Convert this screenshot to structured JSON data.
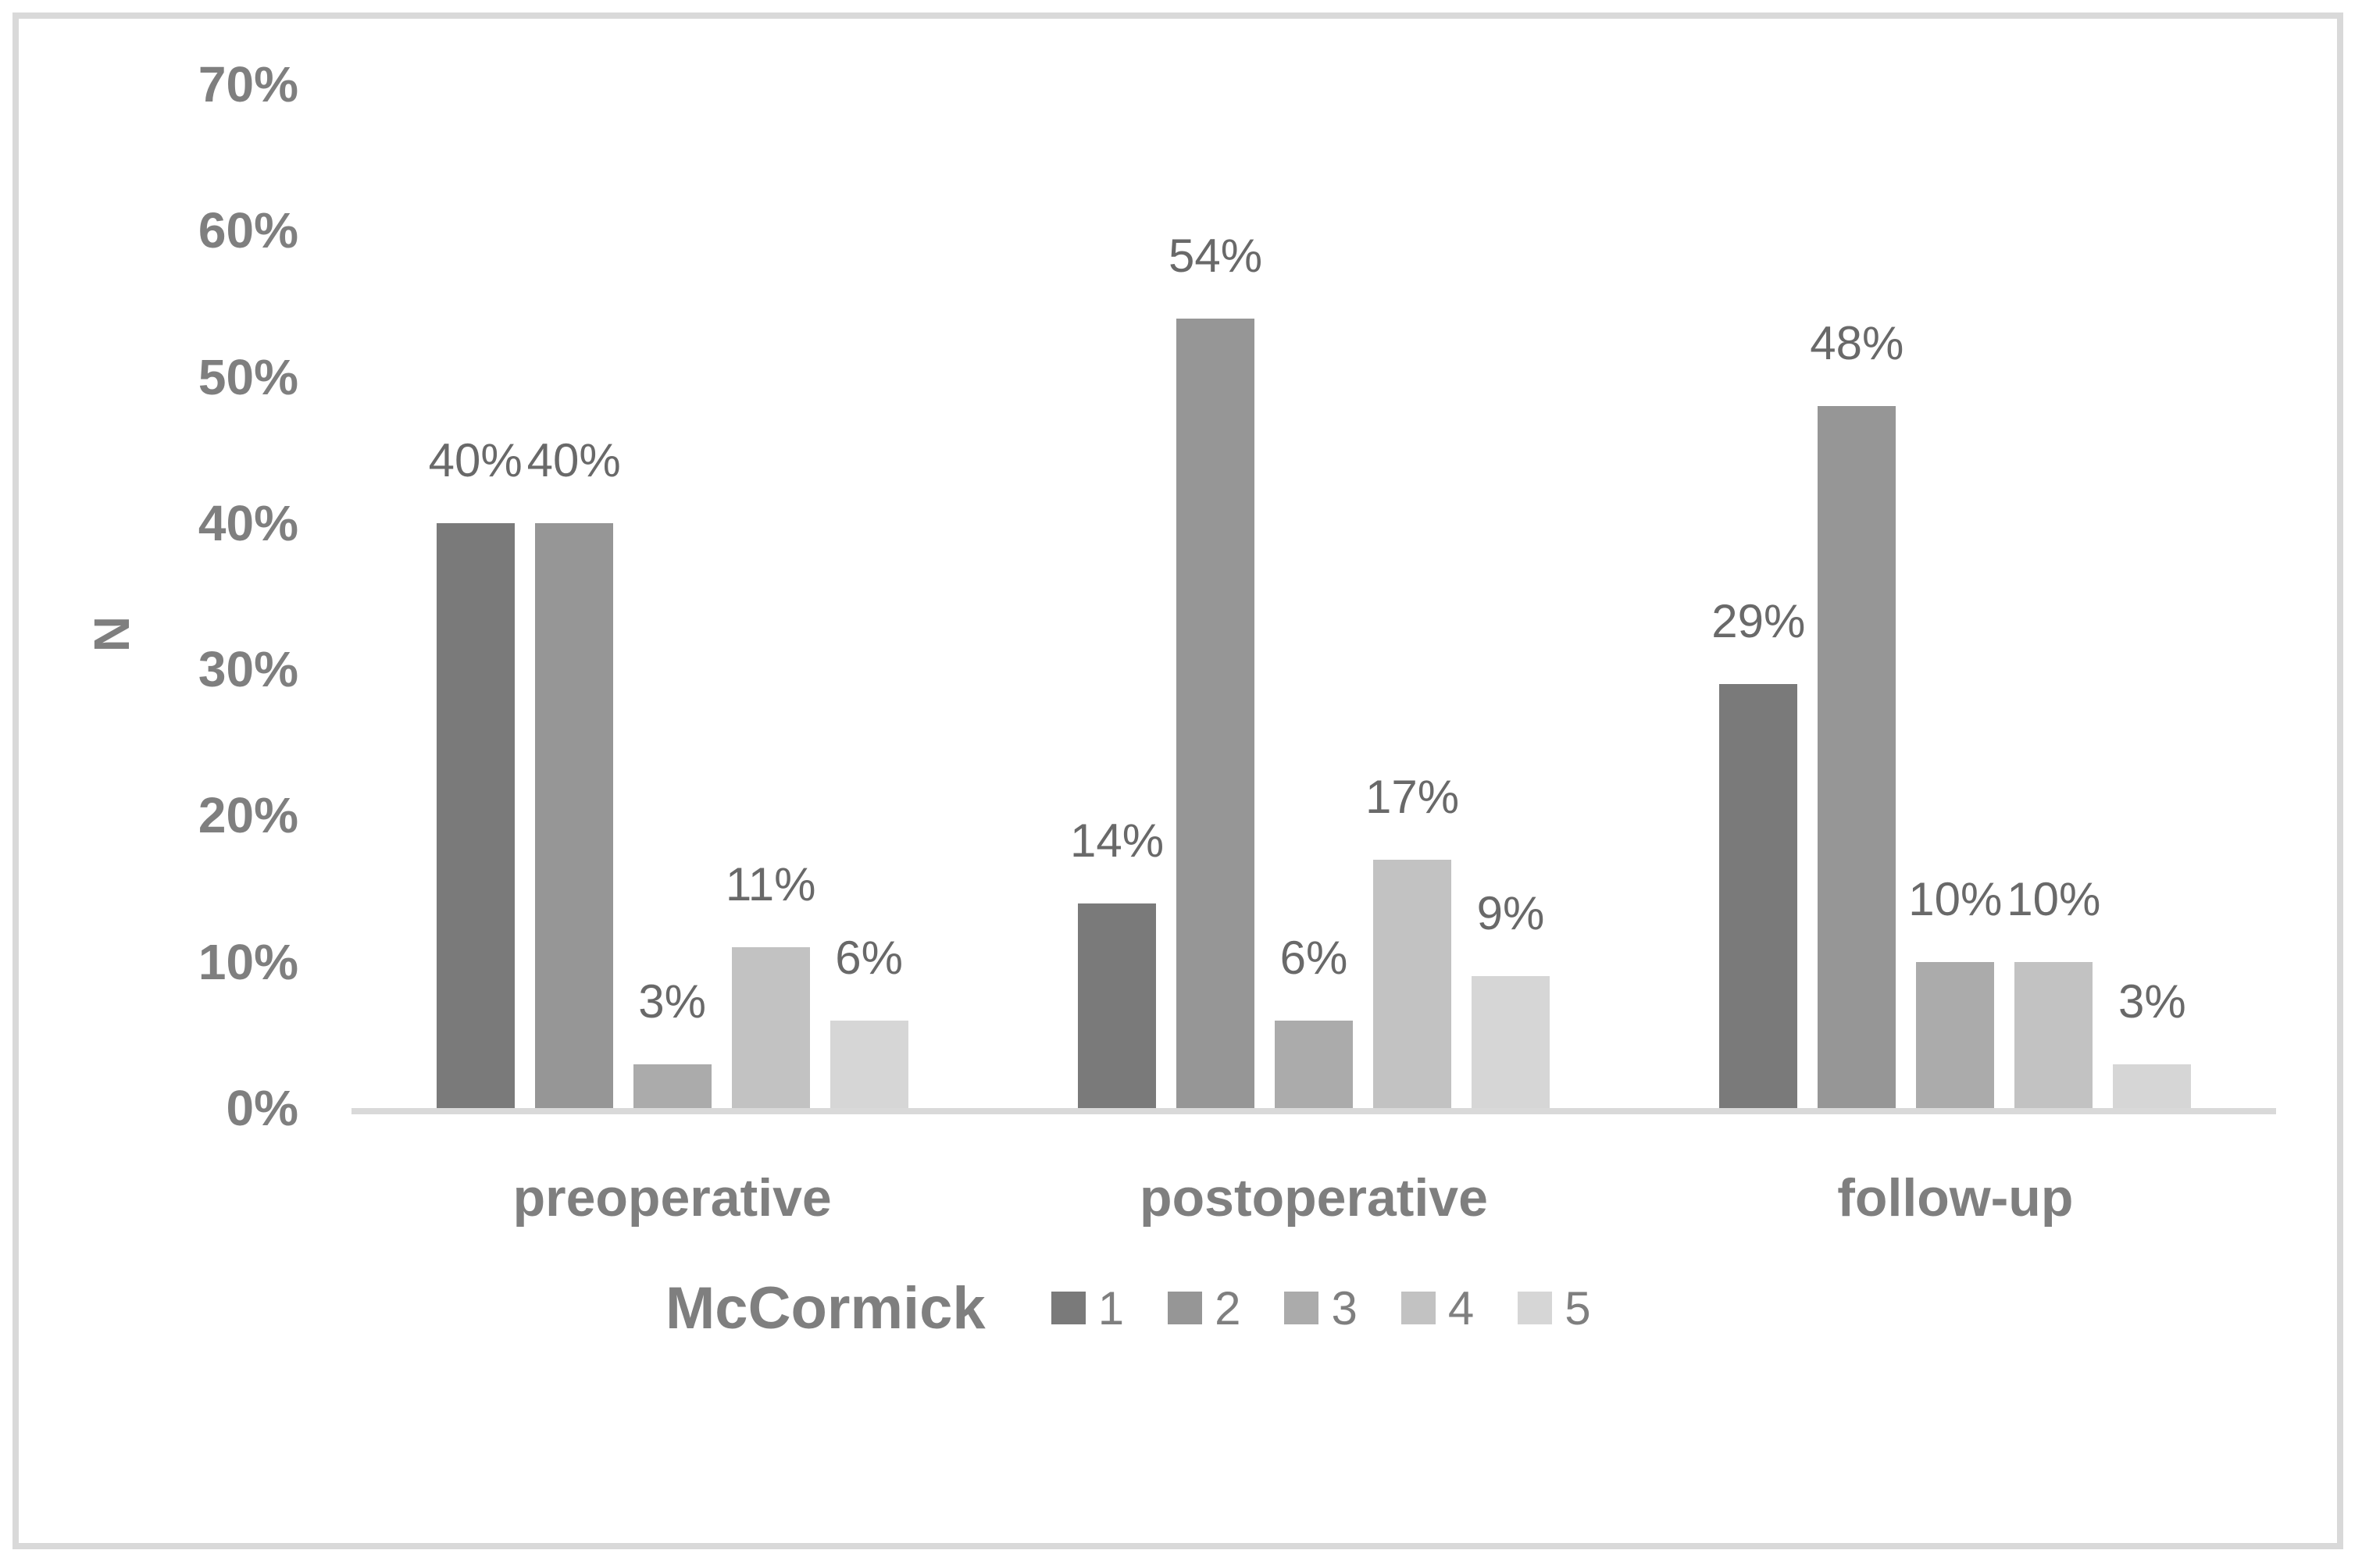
{
  "figure": {
    "background_color": "#ffffff",
    "border_color": "#d9d9d9",
    "axis_line_color": "#d9d9d9",
    "tick_text_color": "#7f7f7f",
    "data_label_color": "#696969"
  },
  "chart_data": {
    "type": "bar",
    "title": "",
    "ylabel": "N",
    "xlabel": "",
    "ylim": [
      0,
      70
    ],
    "ytick_step": 10,
    "yticks": [
      {
        "value": 70,
        "label": "70%"
      },
      {
        "value": 60,
        "label": "60%"
      },
      {
        "value": 50,
        "label": "50%"
      },
      {
        "value": 40,
        "label": "40%"
      },
      {
        "value": 30,
        "label": "30%"
      },
      {
        "value": 20,
        "label": "20%"
      },
      {
        "value": 10,
        "label": "10%"
      },
      {
        "value": 0,
        "label": "0%"
      }
    ],
    "grid": false,
    "categories": [
      "preoperative",
      "postoperative",
      "follow-up"
    ],
    "series": [
      {
        "name": "1",
        "color": "#7a7a7a",
        "values": [
          40,
          14,
          29
        ],
        "labels": [
          "40%",
          "14%",
          "29%"
        ]
      },
      {
        "name": "2",
        "color": "#969696",
        "values": [
          40,
          54,
          48
        ],
        "labels": [
          "40%",
          "54%",
          "48%"
        ]
      },
      {
        "name": "3",
        "color": "#ababab",
        "values": [
          3,
          6,
          10
        ],
        "labels": [
          "3%",
          "6%",
          "10%"
        ]
      },
      {
        "name": "4",
        "color": "#c2c2c2",
        "values": [
          11,
          17,
          10
        ],
        "labels": [
          "11%",
          "17%",
          "10%"
        ]
      },
      {
        "name": "5",
        "color": "#d6d6d6",
        "values": [
          6,
          9,
          3
        ],
        "labels": [
          "6%",
          "9%",
          "3%"
        ]
      }
    ],
    "legend": {
      "title": "McCormick",
      "entries": [
        "1",
        "2",
        "3",
        "4",
        "5"
      ],
      "position": "bottom"
    }
  }
}
